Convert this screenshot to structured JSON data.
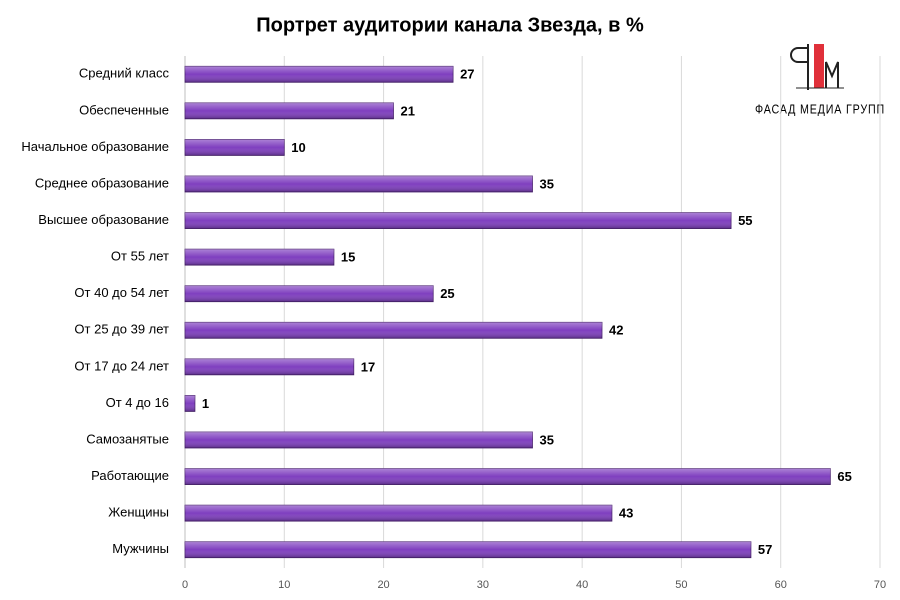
{
  "chart_data": {
    "type": "hbar",
    "title": "Портрет аудитории канала Звезда, в %",
    "categories": [
      "Средний класс",
      "Обеспеченные",
      "Начальное образование",
      "Среднее образование",
      "Высшее образование",
      "От 55 лет",
      "От 40 до 54 лет",
      "От 25 до 39 лет",
      "От 17 до 24 лет",
      "От 4 до 16",
      "Самозанятые",
      "Работающие",
      "Женщины",
      "Мужчины"
    ],
    "values": [
      27,
      21,
      10,
      35,
      55,
      15,
      25,
      42,
      17,
      1,
      35,
      65,
      43,
      57
    ],
    "color": "#7f3fbf",
    "xlim": [
      0,
      70
    ],
    "xticks": [
      0,
      10,
      20,
      30,
      40,
      50,
      60,
      70
    ],
    "grid": true
  },
  "logo": {
    "text": "ФАСАД МЕДИА ГРУПП"
  }
}
